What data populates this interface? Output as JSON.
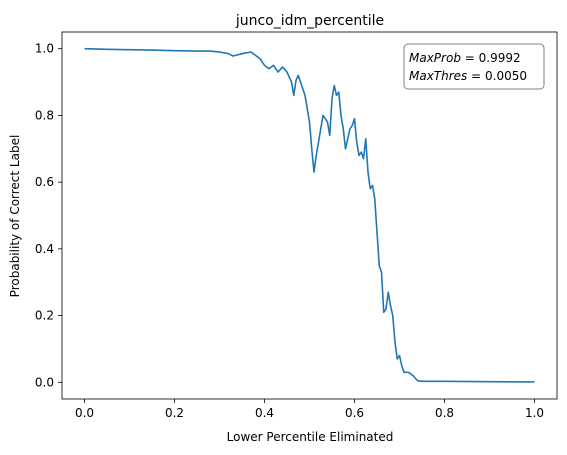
{
  "chart_data": {
    "type": "line",
    "title": "junco_idm_percentile",
    "xlabel": "Lower Percentile Eliminated",
    "ylabel": "Probability of Correct Label",
    "xlim": [
      -0.05,
      1.05
    ],
    "ylim": [
      -0.05,
      1.05
    ],
    "xticks": [
      0.0,
      0.2,
      0.4,
      0.6,
      0.8,
      1.0
    ],
    "xtick_labels": [
      "0.0",
      "0.2",
      "0.4",
      "0.6",
      "0.8",
      "1.0"
    ],
    "yticks": [
      0.0,
      0.2,
      0.4,
      0.6,
      0.8,
      1.0
    ],
    "ytick_labels": [
      "0.0",
      "0.2",
      "0.4",
      "0.6",
      "0.8",
      "1.0"
    ],
    "grid": false,
    "line_color": "#1f77b4",
    "annotation": {
      "line1_name": "MaxProb",
      "line1_eq": " = 0.9992",
      "line2_name": "MaxThres",
      "line2_eq": " = 0.0050"
    },
    "series": [
      {
        "x": [
          0.0,
          0.05,
          0.1,
          0.15,
          0.2,
          0.25,
          0.28,
          0.3,
          0.32,
          0.33,
          0.35,
          0.37,
          0.38,
          0.39,
          0.4,
          0.41,
          0.42,
          0.43,
          0.44,
          0.45,
          0.46,
          0.465,
          0.47,
          0.475,
          0.48,
          0.49,
          0.5,
          0.505,
          0.51,
          0.515,
          0.52,
          0.53,
          0.54,
          0.545,
          0.55,
          0.555,
          0.56,
          0.565,
          0.57,
          0.575,
          0.58,
          0.59,
          0.595,
          0.6,
          0.605,
          0.61,
          0.615,
          0.62,
          0.625,
          0.63,
          0.635,
          0.64,
          0.645,
          0.65,
          0.655,
          0.66,
          0.665,
          0.67,
          0.675,
          0.68,
          0.685,
          0.69,
          0.695,
          0.7,
          0.705,
          0.71,
          0.715,
          0.72,
          0.73,
          0.74,
          0.75,
          0.8,
          0.9,
          1.0
        ],
        "y": [
          1.0,
          0.998,
          0.997,
          0.996,
          0.994,
          0.993,
          0.993,
          0.99,
          0.985,
          0.978,
          0.985,
          0.99,
          0.98,
          0.97,
          0.95,
          0.94,
          0.95,
          0.93,
          0.945,
          0.93,
          0.9,
          0.86,
          0.905,
          0.92,
          0.9,
          0.86,
          0.78,
          0.7,
          0.63,
          0.68,
          0.72,
          0.8,
          0.78,
          0.74,
          0.85,
          0.89,
          0.86,
          0.87,
          0.8,
          0.76,
          0.7,
          0.76,
          0.77,
          0.79,
          0.72,
          0.68,
          0.69,
          0.67,
          0.73,
          0.63,
          0.58,
          0.59,
          0.55,
          0.45,
          0.35,
          0.33,
          0.21,
          0.22,
          0.27,
          0.23,
          0.2,
          0.12,
          0.07,
          0.08,
          0.05,
          0.03,
          0.03,
          0.03,
          0.02,
          0.005,
          0.003,
          0.003,
          0.002,
          0.001
        ]
      }
    ]
  }
}
